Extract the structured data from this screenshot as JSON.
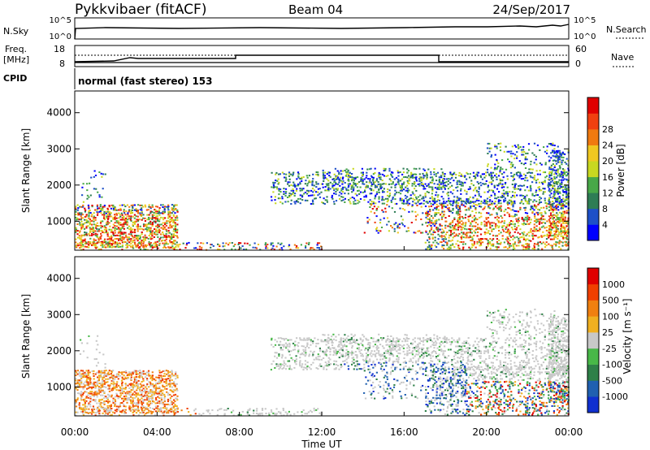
{
  "header": {
    "station": "Pykkvibaer (fitACF)",
    "beam": "Beam 04",
    "date": "24/Sep/2017"
  },
  "status_panels": {
    "nsky_label": "N.Sky",
    "nsky_ticks": [
      "10^5",
      "10^0"
    ],
    "nsearch_label": "N.Search",
    "nsearch_ticks": [
      "10^5",
      "10^0"
    ],
    "freq_label_line1": "Freq.",
    "freq_label_line2": "[MHz]",
    "freq_ticks": [
      "18",
      "8"
    ],
    "nave_label": "Nave",
    "nave_ticks": [
      "60",
      "0"
    ],
    "cpid_label": "CPID",
    "cpid_text": "normal (fast stereo) 153"
  },
  "chart_data": [
    {
      "type": "heatmap",
      "name": "power",
      "ylabel": "Slant Range [km]",
      "yticks": [
        "1000",
        "2000",
        "3000",
        "4000"
      ],
      "ylim": [
        200,
        4600
      ],
      "x": [
        "00:00",
        "04:00",
        "08:00",
        "12:00",
        "16:00",
        "20:00",
        "00:00"
      ],
      "colorbar": {
        "label": "Power [dB]",
        "ticks": [
          "4",
          "8",
          "12",
          "16",
          "20",
          "24",
          "28"
        ],
        "colors": [
          "#0000ff",
          "#1e50c8",
          "#2e7d55",
          "#48a848",
          "#c8d820",
          "#f0c820",
          "#f07a10",
          "#f04010",
          "#e00000"
        ]
      }
    },
    {
      "type": "heatmap",
      "name": "velocity",
      "ylabel": "Slant Range [km]",
      "yticks": [
        "1000",
        "2000",
        "3000",
        "4000"
      ],
      "ylim": [
        200,
        4600
      ],
      "x": [
        "00:00",
        "04:00",
        "08:00",
        "12:00",
        "16:00",
        "20:00",
        "00:00"
      ],
      "colorbar": {
        "label": "Velocity [m s⁻¹]",
        "ticks": [
          "1000",
          "500",
          "100",
          "25",
          "-25",
          "-100",
          "-500",
          "-1000"
        ],
        "colors": [
          "#1030d0",
          "#2060b0",
          "#2e8048",
          "#48b848",
          "#c8c8c8",
          "#f0b020",
          "#f08010",
          "#f04000",
          "#e00000"
        ]
      }
    }
  ],
  "xaxis": {
    "label": "Time UT"
  }
}
